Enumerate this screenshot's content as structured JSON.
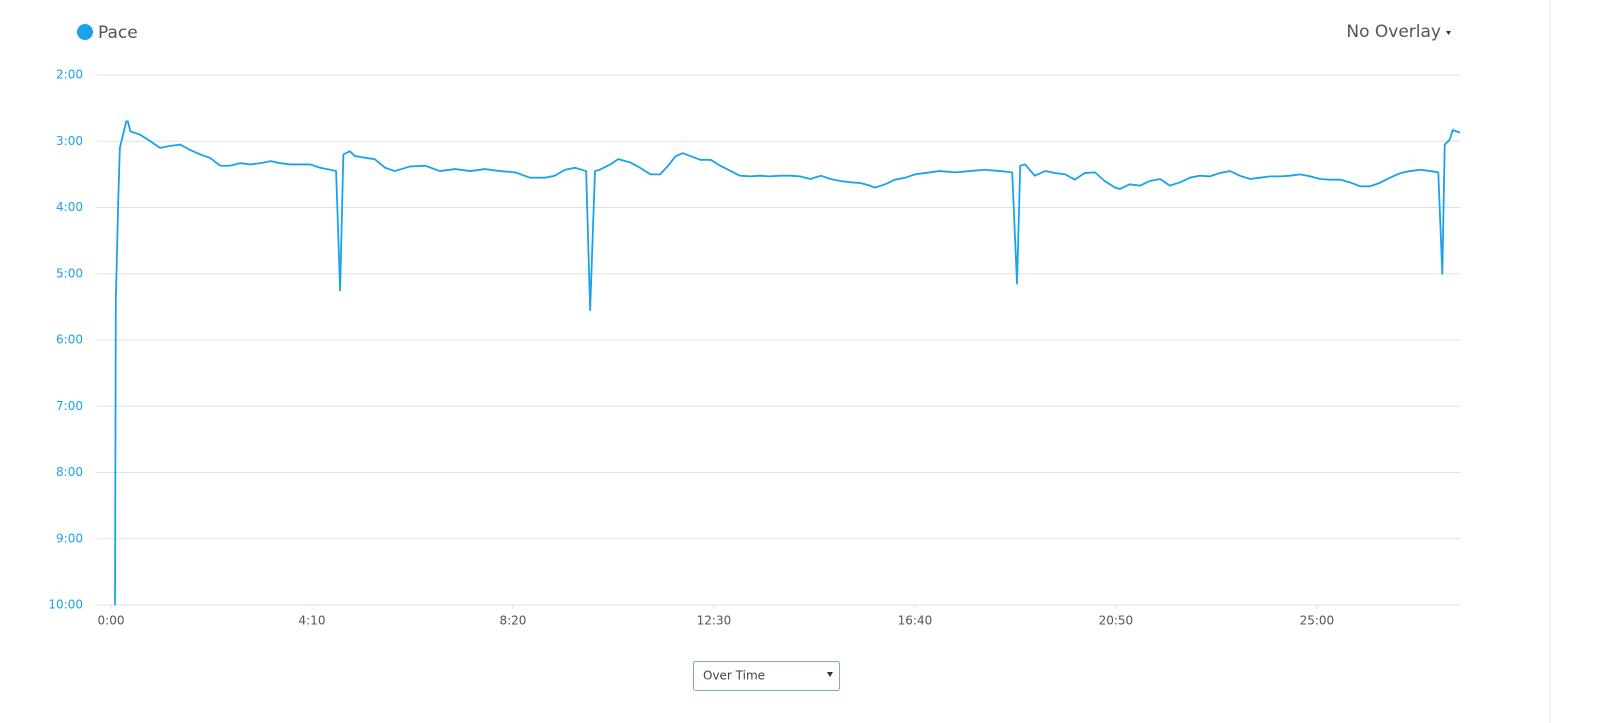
{
  "chart_data": {
    "type": "line",
    "legend_position": "top-left",
    "x": [
      5,
      6,
      9,
      11,
      15,
      19,
      21,
      24,
      36,
      49,
      61,
      74,
      86,
      98,
      111,
      123,
      136,
      148,
      161,
      173,
      186,
      199,
      210,
      223,
      235,
      248,
      260,
      273,
      280,
      285,
      289,
      297,
      303,
      316,
      328,
      341,
      353,
      372,
      391,
      409,
      428,
      447,
      465,
      484,
      503,
      521,
      540,
      552,
      565,
      577,
      591,
      596,
      602,
      608,
      621,
      631,
      646,
      658,
      671,
      683,
      693,
      702,
      711,
      720,
      733,
      746,
      758,
      771,
      782,
      795,
      807,
      820,
      832,
      845,
      857,
      870,
      883,
      895,
      907,
      920,
      932,
      944,
      950,
      963,
      975,
      988,
      1000,
      1012,
      1031,
      1050,
      1068,
      1087,
      1106,
      1121,
      1127,
      1131,
      1137,
      1149,
      1162,
      1174,
      1187,
      1199,
      1211,
      1224,
      1236,
      1249,
      1255,
      1267,
      1280,
      1292,
      1305,
      1317,
      1330,
      1342,
      1354,
      1367,
      1379,
      1392,
      1404,
      1417,
      1429,
      1442,
      1454,
      1467,
      1479,
      1492,
      1504,
      1516,
      1529,
      1541,
      1554,
      1566,
      1578,
      1591,
      1604,
      1616,
      1629,
      1641,
      1651,
      1656,
      1659,
      1665,
      1669,
      1678
    ],
    "series": [
      {
        "name": "Pace",
        "color": "#1aa3e8",
        "values": [
          10.0,
          5.4,
          3.9,
          3.1,
          2.9,
          2.7,
          2.7,
          2.85,
          2.9,
          3.0,
          3.1,
          3.07,
          3.05,
          3.13,
          3.2,
          3.25,
          3.37,
          3.37,
          3.33,
          3.35,
          3.33,
          3.3,
          3.33,
          3.35,
          3.35,
          3.35,
          3.4,
          3.43,
          3.45,
          5.25,
          3.2,
          3.15,
          3.22,
          3.25,
          3.27,
          3.4,
          3.45,
          3.38,
          3.37,
          3.45,
          3.42,
          3.45,
          3.42,
          3.45,
          3.47,
          3.55,
          3.55,
          3.52,
          3.43,
          3.4,
          3.45,
          5.55,
          3.45,
          3.43,
          3.35,
          3.27,
          3.32,
          3.4,
          3.5,
          3.5,
          3.37,
          3.23,
          3.18,
          3.22,
          3.28,
          3.28,
          3.37,
          3.45,
          3.52,
          3.53,
          3.52,
          3.53,
          3.52,
          3.52,
          3.53,
          3.57,
          3.52,
          3.57,
          3.6,
          3.62,
          3.63,
          3.67,
          3.7,
          3.65,
          3.58,
          3.55,
          3.5,
          3.48,
          3.45,
          3.47,
          3.45,
          3.43,
          3.45,
          3.47,
          5.15,
          3.37,
          3.35,
          3.52,
          3.45,
          3.48,
          3.5,
          3.58,
          3.48,
          3.47,
          3.6,
          3.7,
          3.72,
          3.65,
          3.67,
          3.6,
          3.57,
          3.67,
          3.62,
          3.55,
          3.52,
          3.53,
          3.48,
          3.45,
          3.52,
          3.57,
          3.55,
          3.53,
          3.53,
          3.52,
          3.5,
          3.53,
          3.57,
          3.58,
          3.58,
          3.62,
          3.68,
          3.68,
          3.63,
          3.55,
          3.48,
          3.45,
          3.43,
          3.45,
          3.47,
          5.0,
          3.05,
          2.98,
          2.83,
          2.87
        ]
      }
    ],
    "xlim": [
      0,
      1678
    ],
    "xticks": [
      {
        "value": 0,
        "label": "0:00"
      },
      {
        "value": 250,
        "label": "4:10"
      },
      {
        "value": 500,
        "label": "8:20"
      },
      {
        "value": 750,
        "label": "12:30"
      },
      {
        "value": 1000,
        "label": "16:40"
      },
      {
        "value": 1250,
        "label": "20:50"
      },
      {
        "value": 1500,
        "label": "25:00"
      }
    ],
    "ylim": [
      10,
      2
    ],
    "yticks": [
      {
        "value": 2,
        "label": "2:00"
      },
      {
        "value": 3,
        "label": "3:00"
      },
      {
        "value": 4,
        "label": "4:00"
      },
      {
        "value": 5,
        "label": "5:00"
      },
      {
        "value": 6,
        "label": "6:00"
      },
      {
        "value": 7,
        "label": "7:00"
      },
      {
        "value": 8,
        "label": "8:00"
      },
      {
        "value": 9,
        "label": "9:00"
      },
      {
        "value": 10,
        "label": "10:00"
      }
    ],
    "grid": true
  },
  "controls": {
    "overlay": "No Overlay",
    "view": "Over Time"
  }
}
